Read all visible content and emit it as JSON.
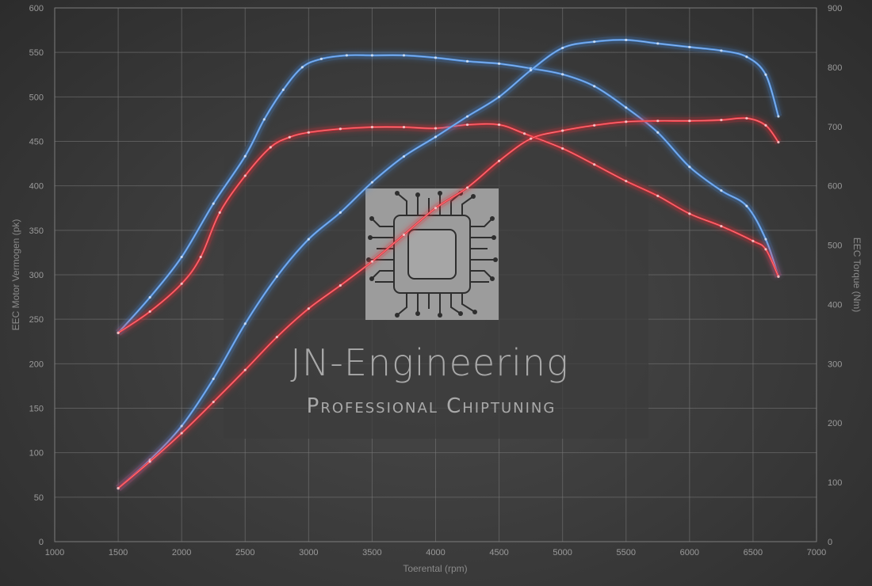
{
  "colors": {
    "blue": "#4a8de0",
    "red": "#e8303a",
    "grid": "#7a7a7a",
    "tick": "#9a9a9a",
    "watermark_box": "#3c3c3c",
    "watermark_text": "#a9a9a9"
  },
  "watermark": {
    "title": "JN-Engineering",
    "subtitle": "Professional Chiptuning",
    "logo_icon": "chip-icon"
  },
  "chart_data": {
    "type": "line",
    "xlabel": "Toerental (rpm)",
    "ylabel": "EEC Motor Vermogen (pk)",
    "y2label": "EEC Torque (Nm)",
    "xlim": [
      1000,
      7000
    ],
    "ylim": [
      0,
      600
    ],
    "y2lim": [
      0,
      900
    ],
    "x_ticks": [
      1000,
      1500,
      2000,
      2500,
      3000,
      3500,
      4000,
      4500,
      5000,
      5500,
      6000,
      6500,
      7000
    ],
    "y_ticks": [
      0,
      50,
      100,
      150,
      200,
      250,
      300,
      350,
      400,
      450,
      500,
      550,
      600
    ],
    "y2_ticks": [
      0,
      100,
      200,
      300,
      400,
      500,
      600,
      700,
      800,
      900
    ],
    "grid": true,
    "series": [
      {
        "color": "blue",
        "axis": "y2",
        "points": [
          [
            1500,
            352
          ],
          [
            1750,
            412
          ],
          [
            2000,
            480
          ],
          [
            2250,
            570
          ],
          [
            2500,
            650
          ],
          [
            2650,
            712
          ],
          [
            2800,
            762
          ],
          [
            2950,
            800
          ],
          [
            3100,
            814
          ],
          [
            3300,
            820
          ],
          [
            3500,
            820
          ],
          [
            3750,
            820
          ],
          [
            4000,
            816
          ],
          [
            4250,
            810
          ],
          [
            4500,
            806
          ],
          [
            4750,
            798
          ],
          [
            5000,
            788
          ],
          [
            5250,
            768
          ],
          [
            5500,
            732
          ],
          [
            5750,
            690
          ],
          [
            6000,
            632
          ],
          [
            6250,
            592
          ],
          [
            6450,
            566
          ],
          [
            6600,
            510
          ],
          [
            6700,
            447
          ]
        ]
      },
      {
        "color": "red",
        "axis": "y2",
        "points": [
          [
            1500,
            352
          ],
          [
            1750,
            388
          ],
          [
            2000,
            435
          ],
          [
            2150,
            480
          ],
          [
            2300,
            555
          ],
          [
            2500,
            617
          ],
          [
            2700,
            665
          ],
          [
            2850,
            682
          ],
          [
            3000,
            690
          ],
          [
            3250,
            696
          ],
          [
            3500,
            699
          ],
          [
            3750,
            699
          ],
          [
            4000,
            697
          ],
          [
            4250,
            703
          ],
          [
            4500,
            703
          ],
          [
            4700,
            688
          ],
          [
            5000,
            663
          ],
          [
            5250,
            636
          ],
          [
            5500,
            608
          ],
          [
            5750,
            583
          ],
          [
            6000,
            553
          ],
          [
            6250,
            532
          ],
          [
            6500,
            507
          ],
          [
            6600,
            493
          ],
          [
            6700,
            447
          ]
        ]
      },
      {
        "color": "blue",
        "axis": "y",
        "points": [
          [
            1500,
            60
          ],
          [
            1750,
            92
          ],
          [
            2000,
            130
          ],
          [
            2250,
            183
          ],
          [
            2500,
            245
          ],
          [
            2750,
            298
          ],
          [
            3000,
            340
          ],
          [
            3250,
            370
          ],
          [
            3500,
            404
          ],
          [
            3750,
            433
          ],
          [
            4000,
            455
          ],
          [
            4250,
            478
          ],
          [
            4500,
            500
          ],
          [
            4750,
            530
          ],
          [
            5000,
            555
          ],
          [
            5250,
            562
          ],
          [
            5500,
            564
          ],
          [
            5750,
            560
          ],
          [
            6000,
            556
          ],
          [
            6250,
            552
          ],
          [
            6450,
            545
          ],
          [
            6600,
            525
          ],
          [
            6700,
            478
          ]
        ]
      },
      {
        "color": "red",
        "axis": "y",
        "points": [
          [
            1500,
            60
          ],
          [
            1750,
            90
          ],
          [
            2000,
            122
          ],
          [
            2250,
            157
          ],
          [
            2500,
            193
          ],
          [
            2750,
            230
          ],
          [
            3000,
            262
          ],
          [
            3250,
            288
          ],
          [
            3500,
            315
          ],
          [
            3750,
            345
          ],
          [
            4000,
            375
          ],
          [
            4250,
            398
          ],
          [
            4500,
            428
          ],
          [
            4750,
            453
          ],
          [
            5000,
            462
          ],
          [
            5250,
            468
          ],
          [
            5500,
            472
          ],
          [
            5750,
            473
          ],
          [
            6000,
            473
          ],
          [
            6250,
            474
          ],
          [
            6450,
            476
          ],
          [
            6600,
            468
          ],
          [
            6700,
            449
          ]
        ]
      }
    ]
  }
}
